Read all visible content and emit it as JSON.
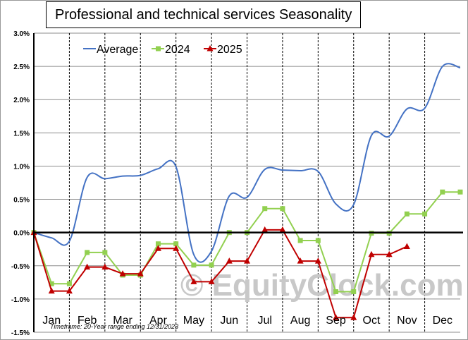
{
  "chart_data": {
    "type": "line",
    "title": "Professional and technical services Seasonality",
    "xlabel": "",
    "ylabel": "",
    "ylim": [
      -1.5,
      3.0
    ],
    "yticks": [
      "3.0%",
      "2.5%",
      "2.0%",
      "1.5%",
      "1.0%",
      "0.5%",
      "0.0%",
      "-0.5%",
      "-1.0%",
      "-1.5%"
    ],
    "ytick_values": [
      3.0,
      2.5,
      2.0,
      1.5,
      1.0,
      0.5,
      0.0,
      -0.5,
      -1.0,
      -1.5
    ],
    "categories": [
      "Jan",
      "Feb",
      "Mar",
      "Apr",
      "May",
      "Jun",
      "Jul",
      "Aug",
      "Sep",
      "Oct",
      "Nov",
      "Dec"
    ],
    "x_unit": "months elapsed",
    "grid": "horizontal gridlines, dashed vertical month separators",
    "legend_position": "top-left",
    "watermark": "© EquityClock.com",
    "footnote": "Timeframe: 20-Year range ending 12/31/2023",
    "series": [
      {
        "name": "Average",
        "color": "#4472C4",
        "marker": "none",
        "smooth": true,
        "x": [
          0,
          0.5,
          1,
          1.5,
          2,
          2.5,
          3,
          3.5,
          4,
          4.5,
          5,
          5.5,
          6,
          6.5,
          7,
          7.5,
          8,
          8.5,
          9,
          9.5,
          10,
          10.5,
          11,
          11.5,
          12
        ],
        "values": [
          0,
          -0.08,
          -0.13,
          0.83,
          0.81,
          0.85,
          0.86,
          0.96,
          0.99,
          -0.33,
          -0.28,
          0.55,
          0.53,
          0.95,
          0.94,
          0.93,
          0.92,
          0.43,
          0.42,
          1.46,
          1.45,
          1.86,
          1.87,
          2.5,
          2.48
        ]
      },
      {
        "name": "2024",
        "color": "#92D050",
        "marker": "square",
        "smooth": false,
        "x": [
          0,
          0.5,
          1,
          1.5,
          2,
          2.5,
          3,
          3.5,
          4,
          4.5,
          5,
          5.5,
          6,
          6.5,
          7,
          7.5,
          8,
          8.5,
          9,
          9.5,
          10,
          10.5,
          11,
          11.5,
          12
        ],
        "values": [
          0,
          -0.77,
          -0.77,
          -0.3,
          -0.3,
          -0.64,
          -0.64,
          -0.17,
          -0.17,
          -0.49,
          -0.49,
          0,
          0,
          0.36,
          0.36,
          -0.12,
          -0.12,
          -0.89,
          -0.89,
          -0.01,
          -0.01,
          0.28,
          0.28,
          0.61,
          0.61
        ]
      },
      {
        "name": "2025",
        "color": "#C00000",
        "marker": "triangle",
        "smooth": false,
        "x": [
          0,
          0.5,
          1,
          1.5,
          2,
          2.5,
          3,
          3.5,
          4,
          4.5,
          5,
          5.5,
          6,
          6.5,
          7,
          7.5,
          8,
          8.5,
          9,
          9.5,
          10,
          10.5
        ],
        "values": [
          0,
          -0.88,
          -0.88,
          -0.52,
          -0.52,
          -0.62,
          -0.62,
          -0.24,
          -0.24,
          -0.74,
          -0.74,
          -0.43,
          -0.43,
          0.04,
          0.04,
          -0.43,
          -0.43,
          -1.28,
          -1.28,
          -0.33,
          -0.33,
          -0.21
        ]
      }
    ]
  }
}
